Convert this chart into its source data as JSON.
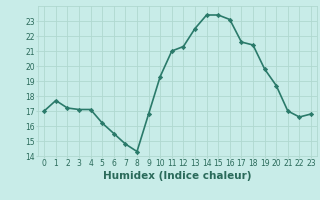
{
  "x": [
    0,
    1,
    2,
    3,
    4,
    5,
    6,
    7,
    8,
    9,
    10,
    11,
    12,
    13,
    14,
    15,
    16,
    17,
    18,
    19,
    20,
    21,
    22,
    23
  ],
  "y": [
    17,
    17.7,
    17.2,
    17.1,
    17.1,
    16.2,
    15.5,
    14.8,
    14.3,
    16.8,
    19.3,
    21.0,
    21.3,
    22.5,
    23.4,
    23.4,
    23.1,
    21.6,
    21.4,
    19.8,
    18.7,
    17.0,
    16.6,
    16.8
  ],
  "line_color": "#2a7a6a",
  "marker": "D",
  "marker_size": 2.2,
  "bg_color": "#c8ece8",
  "grid_color": "#b0d8d0",
  "xlabel": "Humidex (Indice chaleur)",
  "ylabel": "",
  "ylim": [
    14,
    24
  ],
  "xlim": [
    -0.5,
    23.5
  ],
  "yticks": [
    14,
    15,
    16,
    17,
    18,
    19,
    20,
    21,
    22,
    23
  ],
  "xticks": [
    0,
    1,
    2,
    3,
    4,
    5,
    6,
    7,
    8,
    9,
    10,
    11,
    12,
    13,
    14,
    15,
    16,
    17,
    18,
    19,
    20,
    21,
    22,
    23
  ],
  "tick_fontsize": 5.5,
  "xlabel_fontsize": 7.5,
  "line_width": 1.2,
  "tick_color": "#2a6a5a",
  "grid_linewidth": 0.6
}
